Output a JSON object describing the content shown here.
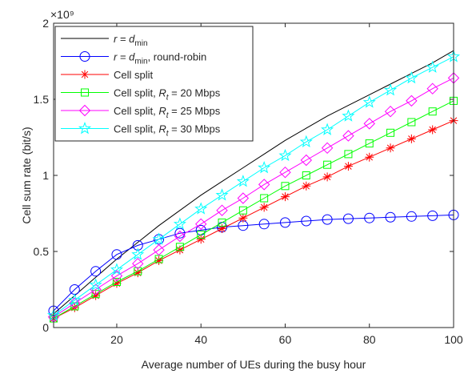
{
  "chart_data": {
    "type": "line",
    "xlabel": "Average number of UEs during the busy hour",
    "ylabel": "Cell sum rate (bit/s)",
    "y_exponent_label": "×10⁹",
    "y_multiplier": 1000000000,
    "xlim": [
      5,
      100
    ],
    "ylim": [
      0,
      2
    ],
    "xticks": [
      20,
      40,
      60,
      80,
      100
    ],
    "yticks": [
      0,
      0.5,
      1,
      1.5,
      2
    ],
    "ytick_labels": [
      "0",
      "0.5",
      "1",
      "1.5",
      "2"
    ],
    "grid": false,
    "legend_position": "top-left",
    "x": [
      5,
      10,
      15,
      20,
      25,
      30,
      35,
      40,
      45,
      50,
      55,
      60,
      65,
      70,
      75,
      80,
      85,
      90,
      95,
      100
    ],
    "series": [
      {
        "label_main": "r = d",
        "label_sub": "min",
        "label_rest": "",
        "color": "#000000",
        "marker": "none",
        "values": [
          0.09,
          0.21,
          0.33,
          0.45,
          0.56,
          0.67,
          0.77,
          0.87,
          0.96,
          1.05,
          1.14,
          1.23,
          1.31,
          1.39,
          1.46,
          1.53,
          1.6,
          1.67,
          1.74,
          1.82
        ]
      },
      {
        "label_main": "r = d",
        "label_sub": "min",
        "label_rest": ", round-robin",
        "color": "#0000ff",
        "marker": "circle",
        "values": [
          0.11,
          0.25,
          0.37,
          0.48,
          0.54,
          0.58,
          0.62,
          0.64,
          0.66,
          0.67,
          0.68,
          0.69,
          0.7,
          0.71,
          0.715,
          0.72,
          0.725,
          0.73,
          0.735,
          0.74
        ]
      },
      {
        "label_main": "Cell split",
        "label_sub": "",
        "label_rest": "",
        "color": "#ff0000",
        "marker": "asterisk",
        "values": [
          0.06,
          0.13,
          0.21,
          0.29,
          0.36,
          0.44,
          0.51,
          0.58,
          0.65,
          0.72,
          0.79,
          0.86,
          0.93,
          0.99,
          1.06,
          1.12,
          1.18,
          1.24,
          1.3,
          1.36
        ]
      },
      {
        "label_main": "Cell split, ",
        "label_sub": "t",
        "label_rest": " = 20 Mbps",
        "label_var": "R",
        "color": "#00ff00",
        "marker": "square",
        "values": [
          0.06,
          0.14,
          0.22,
          0.3,
          0.37,
          0.45,
          0.53,
          0.61,
          0.69,
          0.77,
          0.85,
          0.93,
          1.0,
          1.07,
          1.14,
          1.21,
          1.28,
          1.35,
          1.42,
          1.49
        ]
      },
      {
        "label_main": "Cell split, ",
        "label_sub": "t",
        "label_rest": " = 25 Mbps",
        "label_var": "R",
        "color": "#ff00ff",
        "marker": "diamond",
        "values": [
          0.07,
          0.16,
          0.25,
          0.34,
          0.42,
          0.51,
          0.6,
          0.68,
          0.77,
          0.85,
          0.94,
          1.02,
          1.1,
          1.18,
          1.26,
          1.34,
          1.42,
          1.49,
          1.57,
          1.64
        ]
      },
      {
        "label_main": "Cell split, ",
        "label_sub": "t",
        "label_rest": " = 30 Mbps",
        "label_var": "R",
        "color": "#00ffff",
        "marker": "star",
        "values": [
          0.08,
          0.18,
          0.28,
          0.38,
          0.48,
          0.58,
          0.68,
          0.78,
          0.87,
          0.96,
          1.05,
          1.13,
          1.22,
          1.3,
          1.39,
          1.48,
          1.56,
          1.64,
          1.71,
          1.78
        ]
      }
    ]
  }
}
